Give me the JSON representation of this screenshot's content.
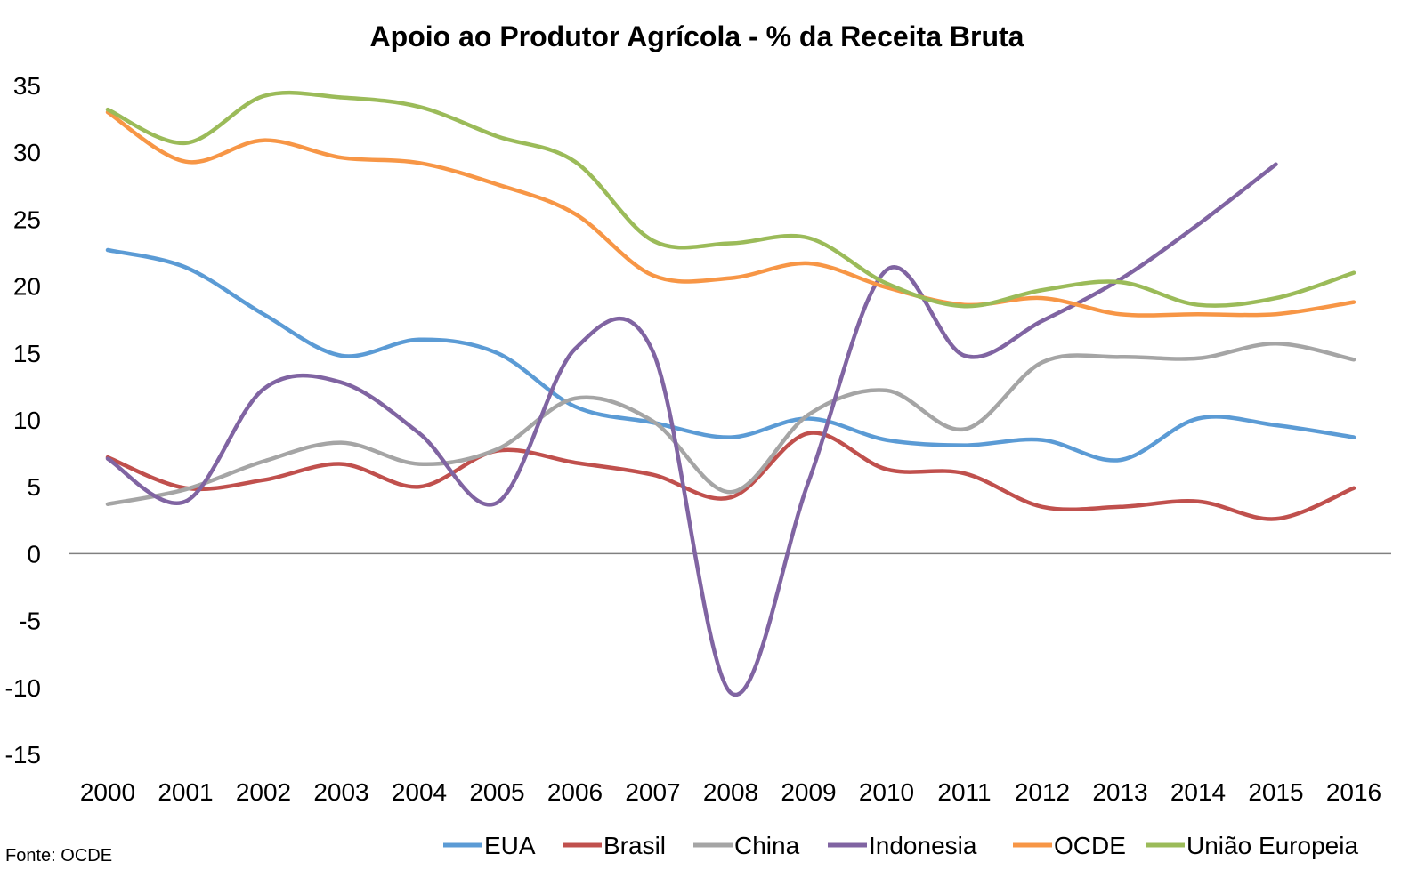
{
  "chart_data": {
    "type": "line",
    "title": "Apoio ao Produtor Agrícola - % da Receita Bruta",
    "xlabel": "",
    "ylabel": "",
    "ylim": [
      -15,
      35
    ],
    "yticks": [
      "35",
      "30",
      "25",
      "20",
      "15",
      "10",
      "5",
      "0",
      "-5",
      "-10",
      "-15"
    ],
    "categories": [
      "2000",
      "2001",
      "2002",
      "2003",
      "2004",
      "2005",
      "2006",
      "2007",
      "2008",
      "2009",
      "2010",
      "2011",
      "2012",
      "2013",
      "2014",
      "2015",
      "2016"
    ],
    "grid": false,
    "legend_position": "bottom",
    "smooth": true,
    "series": [
      {
        "name": "EUA",
        "color": "#5B9BD5",
        "values": [
          22.7,
          21.4,
          17.9,
          14.8,
          16.0,
          15.0,
          11.0,
          9.8,
          8.7,
          10.1,
          8.5,
          8.1,
          8.5,
          7.0,
          10.1,
          9.6,
          8.7
        ]
      },
      {
        "name": "Brasil",
        "color": "#C0504D",
        "values": [
          7.2,
          4.9,
          5.5,
          6.7,
          5.0,
          7.7,
          6.8,
          5.9,
          4.2,
          9.0,
          6.3,
          6.0,
          3.5,
          3.5,
          3.9,
          2.6,
          4.9
        ]
      },
      {
        "name": "China",
        "color": "#A5A5A5",
        "values": [
          3.7,
          4.8,
          6.9,
          8.3,
          6.7,
          7.8,
          11.6,
          9.9,
          4.6,
          10.4,
          12.2,
          9.3,
          14.3,
          14.7,
          14.6,
          15.7,
          14.5
        ]
      },
      {
        "name": "Indonesia",
        "color": "#8064A2",
        "values": [
          7.1,
          3.9,
          12.3,
          12.8,
          9.0,
          3.8,
          15.3,
          15.1,
          -10.4,
          5.4,
          21.2,
          14.8,
          17.4,
          20.5,
          24.6,
          29.1,
          null
        ]
      },
      {
        "name": "OCDE",
        "color": "#F79646",
        "values": [
          33.0,
          29.3,
          30.9,
          29.6,
          29.2,
          27.6,
          25.4,
          20.8,
          20.6,
          21.7,
          19.9,
          18.6,
          19.1,
          17.9,
          17.9,
          17.9,
          18.8
        ]
      },
      {
        "name": "União Europeia",
        "color": "#9BBB59",
        "values": [
          33.2,
          30.7,
          34.2,
          34.1,
          33.4,
          31.2,
          29.3,
          23.4,
          23.2,
          23.6,
          20.2,
          18.5,
          19.7,
          20.3,
          18.6,
          19.1,
          21.0
        ]
      }
    ],
    "source": "Fonte: OCDE"
  }
}
